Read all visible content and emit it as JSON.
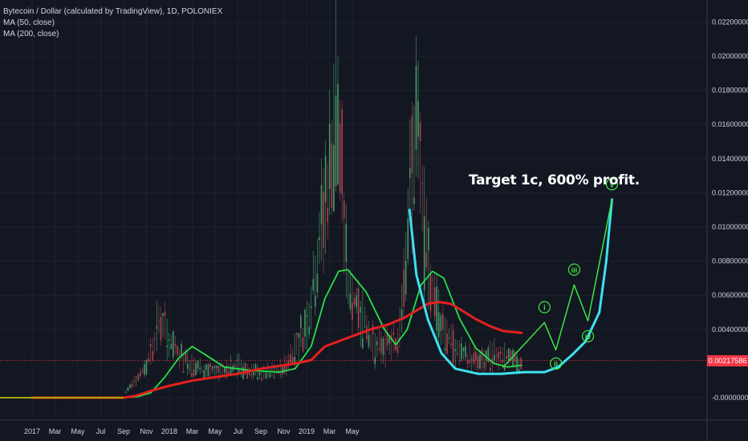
{
  "header": {
    "title": "Bytecoin / Dollar (calculated by TradingView), 1D, POLONIEX",
    "indicators": [
      "MA (50, close)",
      "MA (200, close)"
    ]
  },
  "annotation": "Target 1c, 600% profit.",
  "last_price": "0.00217586",
  "colors": {
    "background": "#131722",
    "grid": "#1e222d",
    "axis_text": "#d1d4dc",
    "ma50": "#26e04a",
    "ma200": "#e5201f",
    "projection": "#3de642",
    "projection_curve": "#3ee0f0",
    "price_line": "#f23645",
    "candle_up": "#4ca66f",
    "candle_down": "#b84a52"
  },
  "chart_data": {
    "type": "line",
    "title": "Bytecoin / Dollar (calculated by TradingView), 1D, POLONIEX",
    "xlabel": "",
    "ylabel": "",
    "x_ticks": [
      "2017",
      "Mar",
      "May",
      "Jul",
      "Sep",
      "Nov",
      "2018",
      "Mar",
      "May",
      "Jul",
      "Sep",
      "Nov",
      "2019",
      "Mar",
      "May"
    ],
    "y_ticks": [
      "0.02200000",
      "0.02000000",
      "0.01800000",
      "0.01600000",
      "0.01400000",
      "0.01200000",
      "0.01000000",
      "0.00800000",
      "0.00600000",
      "0.00400000",
      "-0.00000000"
    ],
    "ylim": [
      -0.0005,
      0.0235
    ],
    "x_range": [
      0,
      29
    ],
    "grid": true,
    "price_line": 0.00217586,
    "series": [
      {
        "name": "MA (50, close)",
        "color": "#26e04a",
        "points": [
          [
            0,
            0
          ],
          [
            4,
            0
          ],
          [
            4.6,
            5e-05
          ],
          [
            5.2,
            0.0003
          ],
          [
            5.8,
            0.0012
          ],
          [
            6.4,
            0.0023
          ],
          [
            7.0,
            0.003
          ],
          [
            7.6,
            0.0025
          ],
          [
            8.4,
            0.0018
          ],
          [
            9.5,
            0.0016
          ],
          [
            10.8,
            0.0015
          ],
          [
            11.5,
            0.0017
          ],
          [
            12.2,
            0.003
          ],
          [
            12.8,
            0.0058
          ],
          [
            13.4,
            0.0074
          ],
          [
            13.8,
            0.0075
          ],
          [
            14.6,
            0.0062
          ],
          [
            15.4,
            0.004
          ],
          [
            15.9,
            0.0031
          ],
          [
            16.4,
            0.004
          ],
          [
            17.0,
            0.0066
          ],
          [
            17.5,
            0.0074
          ],
          [
            18.0,
            0.007
          ],
          [
            18.7,
            0.0046
          ],
          [
            19.4,
            0.0029
          ],
          [
            20.2,
            0.002
          ],
          [
            20.8,
            0.0018
          ],
          [
            21.4,
            0.0019
          ]
        ]
      },
      {
        "name": "MA (200, close)",
        "color": "#e5201f",
        "points": [
          [
            0,
            0
          ],
          [
            4,
            0
          ],
          [
            4.5,
            0.0001
          ],
          [
            5.2,
            0.0004
          ],
          [
            6.0,
            0.0007
          ],
          [
            7.0,
            0.001
          ],
          [
            8.0,
            0.0012
          ],
          [
            9.0,
            0.0014
          ],
          [
            10.0,
            0.0017
          ],
          [
            11.5,
            0.002
          ],
          [
            12.2,
            0.0022
          ],
          [
            12.8,
            0.003
          ],
          [
            13.8,
            0.0035
          ],
          [
            14.8,
            0.004
          ],
          [
            15.6,
            0.0043
          ],
          [
            16.3,
            0.0047
          ],
          [
            16.8,
            0.0051
          ],
          [
            17.3,
            0.0055
          ],
          [
            17.8,
            0.0056
          ],
          [
            18.3,
            0.0055
          ],
          [
            18.8,
            0.0051
          ],
          [
            19.4,
            0.0046
          ],
          [
            20.0,
            0.0042
          ],
          [
            20.6,
            0.0039
          ],
          [
            21.4,
            0.0038
          ]
        ]
      },
      {
        "name": "",
        "color": "#3ee0f0",
        "points": [
          [
            16.5,
            0.011
          ],
          [
            16.8,
            0.0072
          ],
          [
            17.3,
            0.0046
          ],
          [
            17.9,
            0.0026
          ],
          [
            18.5,
            0.0017
          ],
          [
            19.5,
            0.0014
          ],
          [
            20.5,
            0.0014
          ],
          [
            21.5,
            0.0015
          ],
          [
            22.4,
            0.0015
          ],
          [
            23.0,
            0.0018
          ],
          [
            23.6,
            0.0025
          ],
          [
            24.2,
            0.0033
          ],
          [
            24.8,
            0.005
          ],
          [
            25.1,
            0.008
          ],
          [
            25.35,
            0.0116
          ]
        ]
      },
      {
        "name": "",
        "color": "#3de642",
        "points": [
          [
            20.6,
            0.0018
          ],
          [
            22.4,
            0.0044
          ],
          [
            22.9,
            0.0028
          ],
          [
            23.7,
            0.0066
          ],
          [
            24.3,
            0.0045
          ],
          [
            25.35,
            0.0116
          ]
        ]
      }
    ],
    "wave_labels": [
      {
        "label": "i",
        "x": 22.4,
        "y": 0.0053
      },
      {
        "label": "ii",
        "x": 22.9,
        "y": 0.002
      },
      {
        "label": "iii",
        "x": 23.7,
        "y": 0.0075
      },
      {
        "label": "iv",
        "x": 24.3,
        "y": 0.0036
      },
      {
        "label": "v",
        "x": 25.35,
        "y": 0.0125
      }
    ],
    "candles_envelope": [
      [
        4,
        0.0002
      ],
      [
        5,
        0.002
      ],
      [
        5.6,
        0.005
      ],
      [
        6,
        0.0035
      ],
      [
        7,
        0.002
      ],
      [
        8,
        0.0016
      ],
      [
        9,
        0.002
      ],
      [
        10,
        0.0014
      ],
      [
        11,
        0.0018
      ],
      [
        12,
        0.0045
      ],
      [
        13,
        0.014
      ],
      [
        13.3,
        0.019
      ],
      [
        13.8,
        0.007
      ],
      [
        14.5,
        0.005
      ],
      [
        15,
        0.003
      ],
      [
        16,
        0.0035
      ],
      [
        16.8,
        0.0175
      ],
      [
        17.2,
        0.009
      ],
      [
        17.8,
        0.005
      ],
      [
        18.5,
        0.003
      ],
      [
        19.5,
        0.0022
      ],
      [
        20.5,
        0.0028
      ],
      [
        21.4,
        0.002
      ]
    ]
  }
}
